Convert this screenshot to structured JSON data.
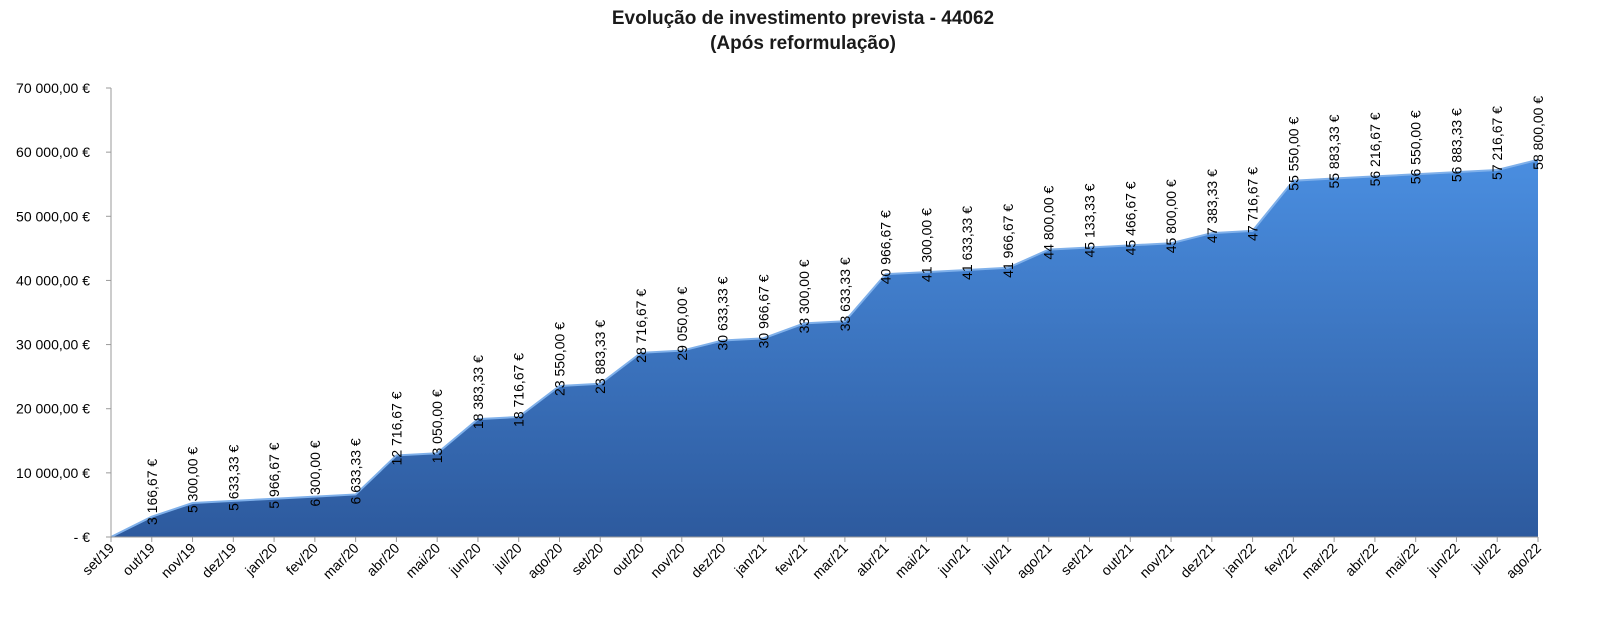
{
  "chart_data": {
    "type": "area",
    "title": "Evolução de investimento prevista - 44062",
    "subtitle": "(Após reformulação)",
    "xlabel": "",
    "ylabel": "",
    "ylim": [
      0,
      70000
    ],
    "y_ticks": [
      {
        "value": 0,
        "label": "-   €"
      },
      {
        "value": 10000,
        "label": "10 000,00 €"
      },
      {
        "value": 20000,
        "label": "20 000,00 €"
      },
      {
        "value": 30000,
        "label": "30 000,00 €"
      },
      {
        "value": 40000,
        "label": "40 000,00 €"
      },
      {
        "value": 50000,
        "label": "50 000,00 €"
      },
      {
        "value": 60000,
        "label": "60 000,00 €"
      },
      {
        "value": 70000,
        "label": "70 000,00 €"
      }
    ],
    "categories": [
      "set/19",
      "out/19",
      "nov/19",
      "dez/19",
      "jan/20",
      "fev/20",
      "mar/20",
      "abr/20",
      "mai/20",
      "jun/20",
      "jul/20",
      "ago/20",
      "set/20",
      "out/20",
      "nov/20",
      "dez/20",
      "jan/21",
      "fev/21",
      "mar/21",
      "abr/21",
      "mai/21",
      "jun/21",
      "jul/21",
      "ago/21",
      "set/21",
      "out/21",
      "nov/21",
      "dez/21",
      "jan/22",
      "fev/22",
      "mar/22",
      "abr/22",
      "mai/22",
      "jun/22",
      "jul/22",
      "ago/22"
    ],
    "values": [
      0,
      3166.67,
      5300.0,
      5633.33,
      5966.67,
      6300.0,
      6633.33,
      12716.67,
      13050.0,
      18383.33,
      18716.67,
      23550.0,
      23883.33,
      28716.67,
      29050.0,
      30633.33,
      30966.67,
      33300.0,
      33633.33,
      40966.67,
      41300.0,
      41633.33,
      41966.67,
      44800.0,
      45133.33,
      45466.67,
      45800.0,
      47383.33,
      47716.67,
      55550.0,
      55883.33,
      56216.67,
      56550.0,
      56883.33,
      57216.67,
      58800.0
    ],
    "data_labels": [
      "",
      "3 166,67 €",
      "5 300,00 €",
      "5 633,33 €",
      "5 966,67 €",
      "6 300,00 €",
      "6 633,33 €",
      "12 716,67 €",
      "13 050,00 €",
      "18 383,33 €",
      "18 716,67 €",
      "23 550,00 €",
      "23 883,33 €",
      "28 716,67 €",
      "29 050,00 €",
      "30 633,33 €",
      "30 966,67 €",
      "33 300,00 €",
      "33 633,33 €",
      "40 966,67 €",
      "41 300,00 €",
      "41 633,33 €",
      "41 966,67 €",
      "44 800,00 €",
      "45 133,33 €",
      "45 466,67 €",
      "45 800,00 €",
      "47 383,33 €",
      "47 716,67 €",
      "55 550,00 €",
      "55 883,33 €",
      "56 216,67 €",
      "56 550,00 €",
      "56 883,33 €",
      "57 216,67 €",
      "58 800,00 €"
    ],
    "grid": false,
    "legend": "none",
    "colors": {
      "area_top": "#4a8ee0",
      "area_bottom": "#2d5a9e",
      "edge": "#7fb0ea"
    }
  }
}
